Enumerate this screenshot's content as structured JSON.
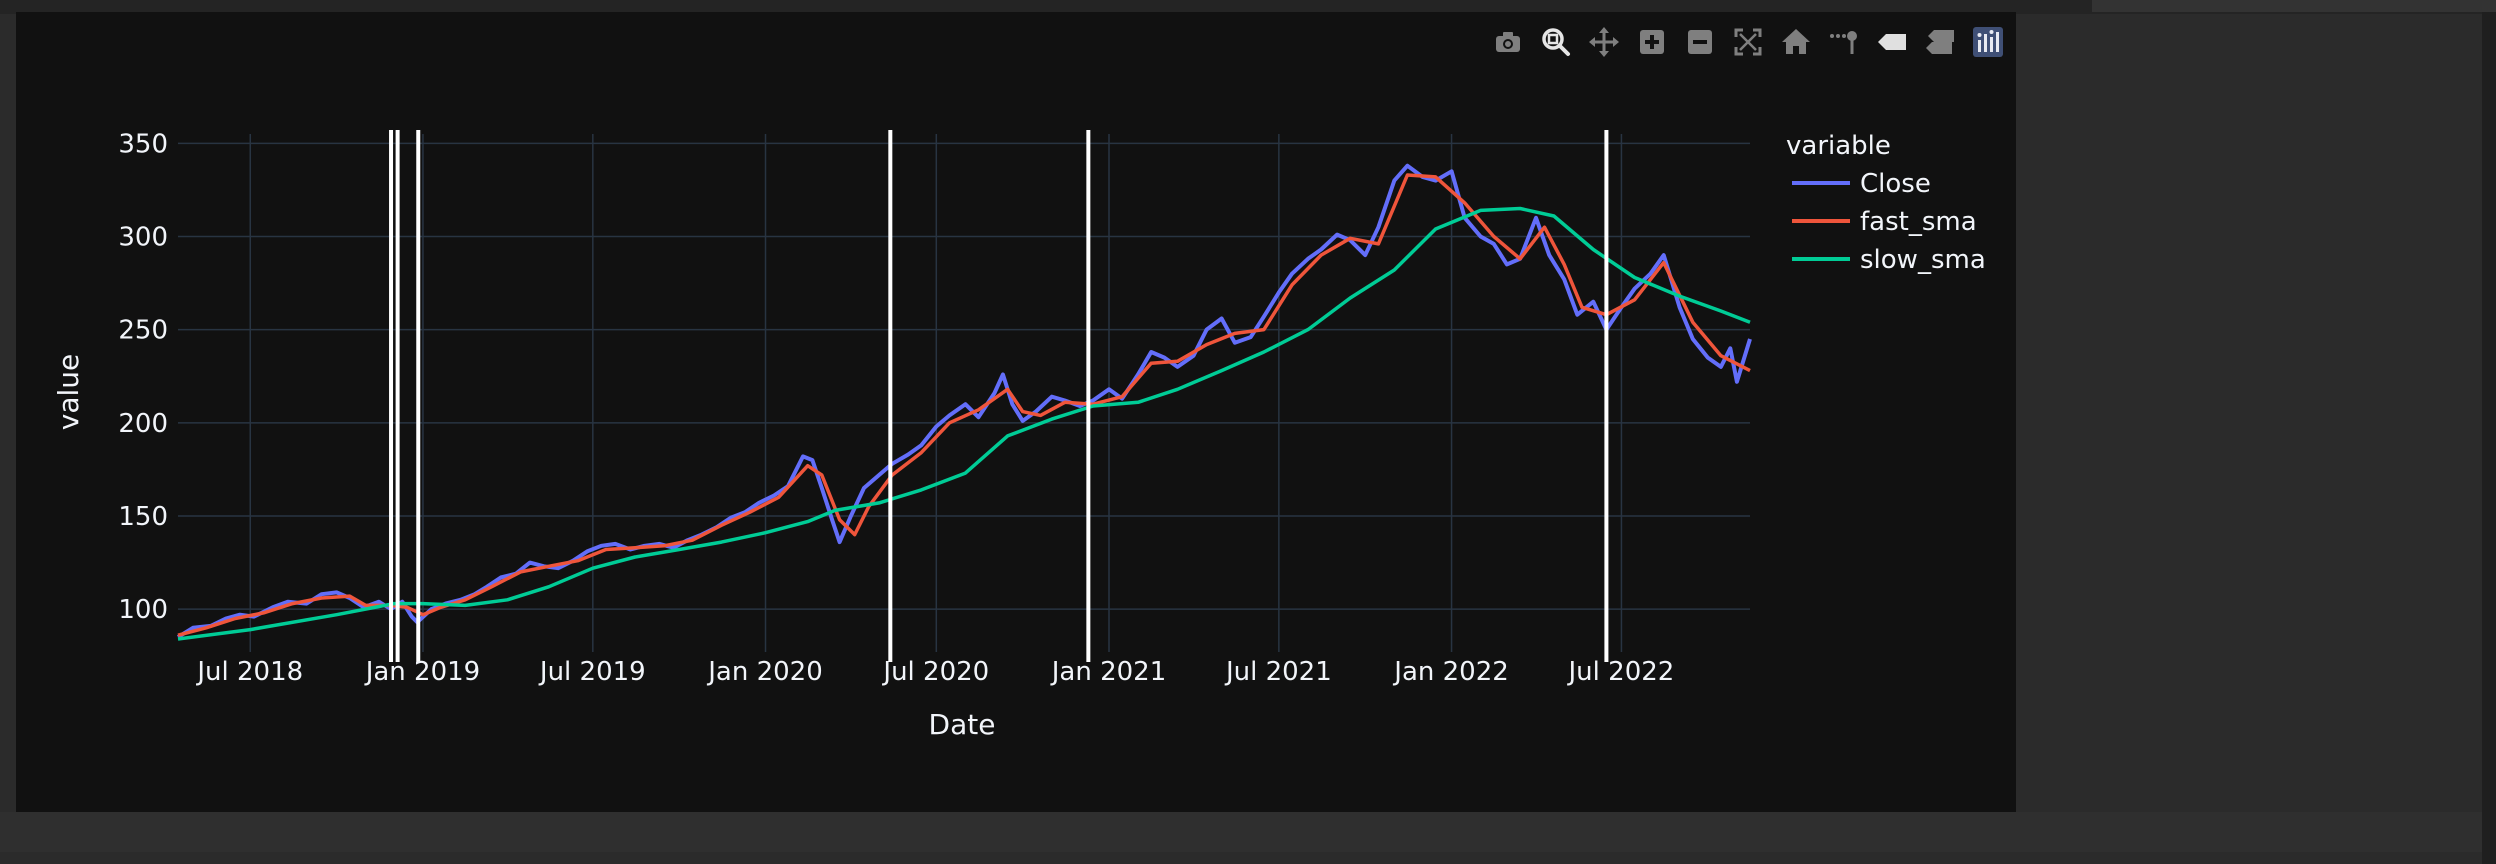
{
  "modebar": {
    "buttons": [
      {
        "icon": "camera-icon",
        "label": "Download plot as a png"
      },
      {
        "icon": "zoom-icon",
        "label": "Zoom",
        "active": true
      },
      {
        "icon": "pan-icon",
        "label": "Pan"
      },
      {
        "icon": "zoom-in-icon",
        "label": "Zoom in"
      },
      {
        "icon": "zoom-out-icon",
        "label": "Zoom out"
      },
      {
        "icon": "autoscale-icon",
        "label": "Autoscale"
      },
      {
        "icon": "home-icon",
        "label": "Reset axes"
      },
      {
        "icon": "spike-lines-icon",
        "label": "Toggle Spike Lines"
      },
      {
        "icon": "hover-closest-icon",
        "label": "Show closest data on hover"
      },
      {
        "icon": "hover-compare-icon",
        "label": "Compare data on hover"
      },
      {
        "icon": "plotly-logo-icon",
        "label": "Produced with Plotly"
      }
    ]
  },
  "colors": {
    "background": "#111111",
    "grid": "#283442",
    "text": "#f2f5fa",
    "close": "#636efa",
    "fast_sma": "#ef553b",
    "slow_sma": "#00cc96",
    "vline": "#ffffff"
  },
  "chart_data": {
    "type": "line",
    "xlabel": "Date",
    "ylabel": "value",
    "x_range": [
      "2018-04-15",
      "2022-11-15"
    ],
    "ylim": [
      77,
      355
    ],
    "x_ticks": [
      {
        "date": "2018-07-01",
        "label": "Jul 2018"
      },
      {
        "date": "2019-01-01",
        "label": "Jan 2019"
      },
      {
        "date": "2019-07-01",
        "label": "Jul 2019"
      },
      {
        "date": "2020-01-01",
        "label": "Jan 2020"
      },
      {
        "date": "2020-07-01",
        "label": "Jul 2020"
      },
      {
        "date": "2021-01-01",
        "label": "Jan 2021"
      },
      {
        "date": "2021-07-01",
        "label": "Jul 2021"
      },
      {
        "date": "2022-01-01",
        "label": "Jan 2022"
      },
      {
        "date": "2022-07-01",
        "label": "Jul 2022"
      }
    ],
    "y_ticks": [
      100,
      150,
      200,
      250,
      300,
      350
    ],
    "grid": true,
    "legend": {
      "title": "variable",
      "placement": "right"
    },
    "vertical_lines": [
      "2018-11-28",
      "2018-12-05",
      "2018-12-27",
      "2020-05-13",
      "2020-12-10",
      "2022-06-15"
    ],
    "series": [
      {
        "name": "Close",
        "points": [
          [
            "2018-04-15",
            85
          ],
          [
            "2018-05-01",
            90
          ],
          [
            "2018-05-20",
            91
          ],
          [
            "2018-06-05",
            95
          ],
          [
            "2018-06-20",
            97
          ],
          [
            "2018-07-05",
            96
          ],
          [
            "2018-07-25",
            101
          ],
          [
            "2018-08-10",
            104
          ],
          [
            "2018-08-30",
            103
          ],
          [
            "2018-09-15",
            108
          ],
          [
            "2018-10-01",
            109
          ],
          [
            "2018-10-15",
            106
          ],
          [
            "2018-10-30",
            101
          ],
          [
            "2018-11-15",
            104
          ],
          [
            "2018-11-28",
            100
          ],
          [
            "2018-12-10",
            104
          ],
          [
            "2018-12-20",
            96
          ],
          [
            "2018-12-26",
            93
          ],
          [
            "2019-01-10",
            100
          ],
          [
            "2019-01-25",
            103
          ],
          [
            "2019-02-10",
            105
          ],
          [
            "2019-02-25",
            108
          ],
          [
            "2019-03-10",
            112
          ],
          [
            "2019-03-25",
            117
          ],
          [
            "2019-04-10",
            119
          ],
          [
            "2019-04-25",
            125
          ],
          [
            "2019-05-10",
            123
          ],
          [
            "2019-05-25",
            122
          ],
          [
            "2019-06-10",
            126
          ],
          [
            "2019-06-25",
            131
          ],
          [
            "2019-07-10",
            134
          ],
          [
            "2019-07-25",
            135
          ],
          [
            "2019-08-10",
            132
          ],
          [
            "2019-08-25",
            134
          ],
          [
            "2019-09-10",
            135
          ],
          [
            "2019-09-25",
            133
          ],
          [
            "2019-10-10",
            137
          ],
          [
            "2019-10-25",
            140
          ],
          [
            "2019-11-10",
            144
          ],
          [
            "2019-11-25",
            149
          ],
          [
            "2019-12-10",
            152
          ],
          [
            "2019-12-25",
            157
          ],
          [
            "2020-01-10",
            161
          ],
          [
            "2020-01-25",
            166
          ],
          [
            "2020-02-10",
            182
          ],
          [
            "2020-02-20",
            180
          ],
          [
            "2020-03-01",
            165
          ],
          [
            "2020-03-12",
            148
          ],
          [
            "2020-03-20",
            136
          ],
          [
            "2020-04-01",
            150
          ],
          [
            "2020-04-15",
            165
          ],
          [
            "2020-05-01",
            172
          ],
          [
            "2020-05-15",
            178
          ],
          [
            "2020-06-01",
            183
          ],
          [
            "2020-06-15",
            188
          ],
          [
            "2020-07-01",
            198
          ],
          [
            "2020-07-15",
            204
          ],
          [
            "2020-08-01",
            210
          ],
          [
            "2020-08-15",
            203
          ],
          [
            "2020-09-01",
            216
          ],
          [
            "2020-09-10",
            226
          ],
          [
            "2020-09-20",
            210
          ],
          [
            "2020-10-01",
            201
          ],
          [
            "2020-10-15",
            206
          ],
          [
            "2020-11-01",
            214
          ],
          [
            "2020-11-15",
            212
          ],
          [
            "2020-12-01",
            209
          ],
          [
            "2020-12-15",
            212
          ],
          [
            "2021-01-01",
            218
          ],
          [
            "2021-01-15",
            213
          ],
          [
            "2021-02-01",
            226
          ],
          [
            "2021-02-15",
            238
          ],
          [
            "2021-03-01",
            235
          ],
          [
            "2021-03-15",
            230
          ],
          [
            "2021-04-01",
            236
          ],
          [
            "2021-04-15",
            250
          ],
          [
            "2021-05-01",
            256
          ],
          [
            "2021-05-15",
            243
          ],
          [
            "2021-06-01",
            246
          ],
          [
            "2021-06-15",
            257
          ],
          [
            "2021-07-01",
            270
          ],
          [
            "2021-07-15",
            280
          ],
          [
            "2021-08-01",
            288
          ],
          [
            "2021-08-15",
            293
          ],
          [
            "2021-09-01",
            301
          ],
          [
            "2021-09-15",
            298
          ],
          [
            "2021-10-01",
            290
          ],
          [
            "2021-10-15",
            305
          ],
          [
            "2021-11-01",
            330
          ],
          [
            "2021-11-15",
            338
          ],
          [
            "2021-12-01",
            332
          ],
          [
            "2021-12-15",
            330
          ],
          [
            "2022-01-01",
            335
          ],
          [
            "2022-01-15",
            310
          ],
          [
            "2022-02-01",
            300
          ],
          [
            "2022-02-15",
            296
          ],
          [
            "2022-03-01",
            285
          ],
          [
            "2022-03-15",
            288
          ],
          [
            "2022-04-01",
            310
          ],
          [
            "2022-04-15",
            290
          ],
          [
            "2022-05-01",
            277
          ],
          [
            "2022-05-15",
            258
          ],
          [
            "2022-06-01",
            265
          ],
          [
            "2022-06-15",
            250
          ],
          [
            "2022-07-01",
            262
          ],
          [
            "2022-07-15",
            272
          ],
          [
            "2022-08-01",
            280
          ],
          [
            "2022-08-15",
            290
          ],
          [
            "2022-09-01",
            262
          ],
          [
            "2022-09-15",
            245
          ],
          [
            "2022-10-01",
            235
          ],
          [
            "2022-10-15",
            230
          ],
          [
            "2022-10-25",
            240
          ],
          [
            "2022-11-01",
            222
          ],
          [
            "2022-11-15",
            245
          ]
        ]
      },
      {
        "name": "fast_sma",
        "points": [
          [
            "2018-04-15",
            86
          ],
          [
            "2018-05-15",
            90
          ],
          [
            "2018-06-15",
            95
          ],
          [
            "2018-07-15",
            98
          ],
          [
            "2018-08-15",
            103
          ],
          [
            "2018-09-15",
            106
          ],
          [
            "2018-10-15",
            107
          ],
          [
            "2018-11-01",
            102
          ],
          [
            "2018-11-28",
            102
          ],
          [
            "2018-12-15",
            101
          ],
          [
            "2019-01-01",
            97
          ],
          [
            "2019-01-20",
            101
          ],
          [
            "2019-02-15",
            105
          ],
          [
            "2019-03-15",
            112
          ],
          [
            "2019-04-15",
            120
          ],
          [
            "2019-05-15",
            123
          ],
          [
            "2019-06-15",
            126
          ],
          [
            "2019-07-15",
            132
          ],
          [
            "2019-08-15",
            133
          ],
          [
            "2019-09-15",
            134
          ],
          [
            "2019-10-15",
            137
          ],
          [
            "2019-11-15",
            145
          ],
          [
            "2019-12-15",
            152
          ],
          [
            "2020-01-15",
            160
          ],
          [
            "2020-02-15",
            177
          ],
          [
            "2020-03-01",
            172
          ],
          [
            "2020-03-20",
            148
          ],
          [
            "2020-04-05",
            140
          ],
          [
            "2020-04-20",
            155
          ],
          [
            "2020-05-15",
            172
          ],
          [
            "2020-06-15",
            184
          ],
          [
            "2020-07-15",
            200
          ],
          [
            "2020-08-15",
            207
          ],
          [
            "2020-09-15",
            218
          ],
          [
            "2020-10-01",
            206
          ],
          [
            "2020-10-20",
            204
          ],
          [
            "2020-11-15",
            211
          ],
          [
            "2020-12-15",
            210
          ],
          [
            "2021-01-15",
            214
          ],
          [
            "2021-02-15",
            232
          ],
          [
            "2021-03-15",
            233
          ],
          [
            "2021-04-15",
            242
          ],
          [
            "2021-05-15",
            248
          ],
          [
            "2021-06-15",
            250
          ],
          [
            "2021-07-15",
            274
          ],
          [
            "2021-08-15",
            290
          ],
          [
            "2021-09-15",
            299
          ],
          [
            "2021-10-15",
            296
          ],
          [
            "2021-11-15",
            333
          ],
          [
            "2021-12-15",
            332
          ],
          [
            "2022-01-15",
            318
          ],
          [
            "2022-02-15",
            300
          ],
          [
            "2022-03-15",
            288
          ],
          [
            "2022-04-10",
            305
          ],
          [
            "2022-05-01",
            285
          ],
          [
            "2022-05-20",
            262
          ],
          [
            "2022-06-15",
            258
          ],
          [
            "2022-07-15",
            266
          ],
          [
            "2022-08-15",
            286
          ],
          [
            "2022-09-15",
            254
          ],
          [
            "2022-10-15",
            236
          ],
          [
            "2022-11-15",
            228
          ]
        ]
      },
      {
        "name": "slow_sma",
        "points": [
          [
            "2018-04-15",
            84
          ],
          [
            "2018-07-01",
            89
          ],
          [
            "2018-10-01",
            97
          ],
          [
            "2018-12-01",
            103
          ],
          [
            "2019-01-01",
            103
          ],
          [
            "2019-02-15",
            102
          ],
          [
            "2019-04-01",
            105
          ],
          [
            "2019-05-15",
            112
          ],
          [
            "2019-07-01",
            122
          ],
          [
            "2019-08-15",
            128
          ],
          [
            "2019-10-01",
            132
          ],
          [
            "2019-11-15",
            136
          ],
          [
            "2020-01-01",
            141
          ],
          [
            "2020-02-15",
            147
          ],
          [
            "2020-03-15",
            153
          ],
          [
            "2020-05-01",
            157
          ],
          [
            "2020-06-15",
            164
          ],
          [
            "2020-08-01",
            173
          ],
          [
            "2020-09-15",
            193
          ],
          [
            "2020-11-01",
            202
          ],
          [
            "2020-12-15",
            209
          ],
          [
            "2021-02-01",
            211
          ],
          [
            "2021-03-15",
            218
          ],
          [
            "2021-05-01",
            228
          ],
          [
            "2021-06-15",
            238
          ],
          [
            "2021-08-01",
            250
          ],
          [
            "2021-09-15",
            267
          ],
          [
            "2021-11-01",
            282
          ],
          [
            "2021-12-15",
            304
          ],
          [
            "2022-02-01",
            314
          ],
          [
            "2022-03-15",
            315
          ],
          [
            "2022-04-20",
            311
          ],
          [
            "2022-06-01",
            293
          ],
          [
            "2022-07-15",
            278
          ],
          [
            "2022-09-01",
            268
          ],
          [
            "2022-10-15",
            260
          ],
          [
            "2022-11-15",
            254
          ]
        ]
      }
    ]
  }
}
